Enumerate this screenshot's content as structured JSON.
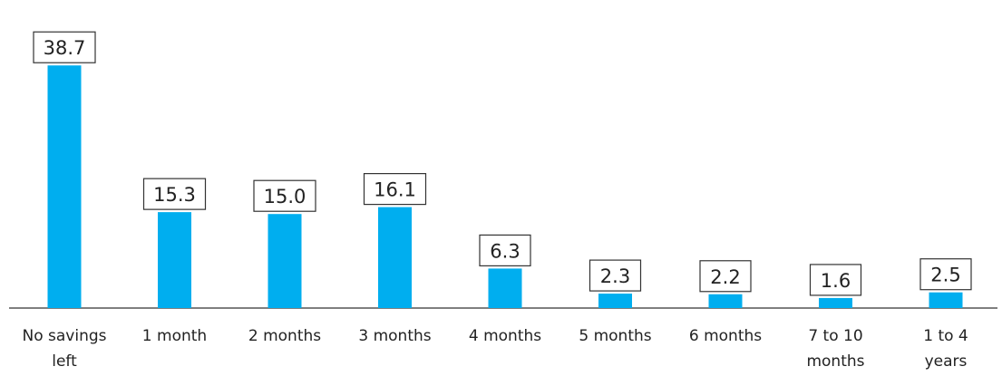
{
  "chart_data": {
    "type": "bar",
    "categories": [
      [
        "No savings",
        "left"
      ],
      [
        "1 month"
      ],
      [
        "2 months"
      ],
      [
        "3 months"
      ],
      [
        "4 months"
      ],
      [
        "5 months"
      ],
      [
        "6 months"
      ],
      [
        "7 to 10",
        "months"
      ],
      [
        "1 to 4",
        "years"
      ]
    ],
    "values": [
      38.7,
      15.3,
      15.0,
      16.1,
      6.3,
      2.3,
      2.2,
      1.6,
      2.5
    ],
    "value_labels": [
      "38.7",
      "15.3",
      "15.0",
      "16.1",
      "6.3",
      "2.3",
      "2.2",
      "1.6",
      "2.5"
    ],
    "ylim": [
      0,
      40
    ],
    "bar_color": "#00aeef",
    "grid": false,
    "legend": "none"
  }
}
